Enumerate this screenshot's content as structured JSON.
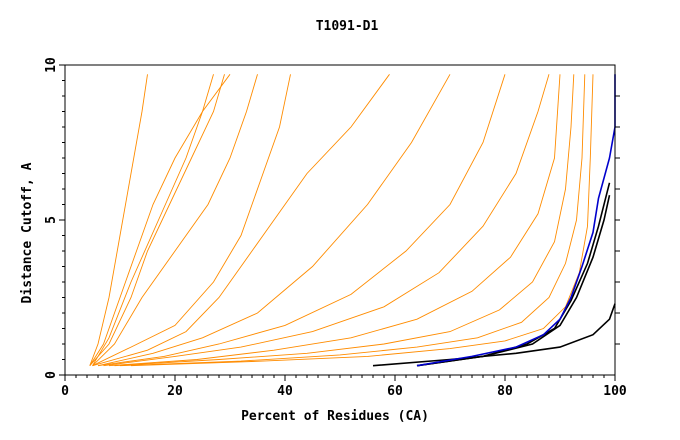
{
  "chart_data": {
    "type": "line",
    "title": "T1091-D1",
    "xlabel": "Percent of Residues (CA)",
    "ylabel": "Distance Cutoff, A",
    "xlim": [
      0,
      100
    ],
    "ylim": [
      0,
      10
    ],
    "x_ticks": [
      0,
      20,
      40,
      60,
      80,
      100
    ],
    "x_tick_labels": [
      "0",
      "20",
      "40",
      "60",
      "80",
      "100"
    ],
    "y_ticks": [
      0,
      5,
      10
    ],
    "y_tick_labels": [
      "0",
      "5",
      "10"
    ],
    "grid": false,
    "colors": {
      "orange": "#ff8c00",
      "black": "#000000",
      "blue": "#0000cc"
    },
    "series": [
      {
        "color": "orange",
        "points": [
          [
            4.5,
            0.3
          ],
          [
            6,
            1.0
          ],
          [
            8,
            2.5
          ],
          [
            10,
            4.5
          ],
          [
            12,
            6.5
          ],
          [
            14,
            8.5
          ],
          [
            15,
            9.7
          ]
        ]
      },
      {
        "color": "orange",
        "points": [
          [
            4.5,
            0.3
          ],
          [
            7,
            1.0
          ],
          [
            10,
            2.5
          ],
          [
            13,
            4.0
          ],
          [
            16,
            5.5
          ],
          [
            20,
            7.0
          ],
          [
            25,
            8.5
          ],
          [
            30,
            9.7
          ]
        ]
      },
      {
        "color": "orange",
        "points": [
          [
            4.5,
            0.3
          ],
          [
            8,
            1.0
          ],
          [
            12,
            2.5
          ],
          [
            15,
            4.0
          ],
          [
            19,
            5.5
          ],
          [
            23,
            7.0
          ],
          [
            27,
            8.5
          ],
          [
            29,
            9.7
          ]
        ]
      },
      {
        "color": "orange",
        "points": [
          [
            5,
            0.3
          ],
          [
            8,
            1.2
          ],
          [
            12,
            3.0
          ],
          [
            17,
            5.0
          ],
          [
            22,
            7.0
          ],
          [
            25,
            8.5
          ],
          [
            27,
            9.7
          ]
        ]
      },
      {
        "color": "orange",
        "points": [
          [
            5,
            0.3
          ],
          [
            9,
            1.0
          ],
          [
            14,
            2.5
          ],
          [
            20,
            4.0
          ],
          [
            26,
            5.5
          ],
          [
            30,
            7.0
          ],
          [
            33,
            8.5
          ],
          [
            35,
            9.7
          ]
        ]
      },
      {
        "color": "orange",
        "points": [
          [
            5,
            0.3
          ],
          [
            12,
            0.9
          ],
          [
            20,
            1.6
          ],
          [
            27,
            3.0
          ],
          [
            32,
            4.5
          ],
          [
            36,
            6.5
          ],
          [
            39,
            8.0
          ],
          [
            41,
            9.7
          ]
        ]
      },
      {
        "color": "orange",
        "points": [
          [
            5,
            0.3
          ],
          [
            15,
            0.8
          ],
          [
            22,
            1.4
          ],
          [
            28,
            2.5
          ],
          [
            36,
            4.5
          ],
          [
            44,
            6.5
          ],
          [
            52,
            8.0
          ],
          [
            59,
            9.7
          ]
        ]
      },
      {
        "color": "orange",
        "points": [
          [
            6,
            0.3
          ],
          [
            16,
            0.7
          ],
          [
            25,
            1.2
          ],
          [
            35,
            2.0
          ],
          [
            45,
            3.5
          ],
          [
            55,
            5.5
          ],
          [
            63,
            7.5
          ],
          [
            70,
            9.7
          ]
        ]
      },
      {
        "color": "orange",
        "points": [
          [
            6,
            0.3
          ],
          [
            18,
            0.6
          ],
          [
            28,
            1.0
          ],
          [
            40,
            1.6
          ],
          [
            52,
            2.6
          ],
          [
            62,
            4.0
          ],
          [
            70,
            5.5
          ],
          [
            76,
            7.5
          ],
          [
            80,
            9.7
          ]
        ]
      },
      {
        "color": "orange",
        "points": [
          [
            7,
            0.3
          ],
          [
            20,
            0.6
          ],
          [
            32,
            0.9
          ],
          [
            45,
            1.4
          ],
          [
            58,
            2.2
          ],
          [
            68,
            3.3
          ],
          [
            76,
            4.8
          ],
          [
            82,
            6.5
          ],
          [
            86,
            8.5
          ],
          [
            88,
            9.7
          ]
        ]
      },
      {
        "color": "orange",
        "points": [
          [
            8,
            0.3
          ],
          [
            24,
            0.5
          ],
          [
            38,
            0.8
          ],
          [
            52,
            1.2
          ],
          [
            64,
            1.8
          ],
          [
            74,
            2.7
          ],
          [
            81,
            3.8
          ],
          [
            86,
            5.2
          ],
          [
            89,
            7.0
          ],
          [
            90,
            9.7
          ]
        ]
      },
      {
        "color": "orange",
        "points": [
          [
            9,
            0.3
          ],
          [
            28,
            0.5
          ],
          [
            44,
            0.7
          ],
          [
            58,
            1.0
          ],
          [
            70,
            1.4
          ],
          [
            79,
            2.1
          ],
          [
            85,
            3.0
          ],
          [
            89,
            4.3
          ],
          [
            91,
            6.0
          ],
          [
            92,
            8.0
          ],
          [
            92.5,
            9.7
          ]
        ]
      },
      {
        "color": "orange",
        "points": [
          [
            10,
            0.3
          ],
          [
            32,
            0.45
          ],
          [
            50,
            0.65
          ],
          [
            64,
            0.9
          ],
          [
            75,
            1.2
          ],
          [
            83,
            1.7
          ],
          [
            88,
            2.5
          ],
          [
            91,
            3.6
          ],
          [
            93,
            5.0
          ],
          [
            94,
            7.0
          ],
          [
            94.5,
            9.7
          ]
        ]
      },
      {
        "color": "orange",
        "points": [
          [
            12,
            0.3
          ],
          [
            36,
            0.45
          ],
          [
            55,
            0.6
          ],
          [
            70,
            0.85
          ],
          [
            80,
            1.1
          ],
          [
            87,
            1.5
          ],
          [
            91,
            2.2
          ],
          [
            93.5,
            3.3
          ],
          [
            95,
            4.8
          ],
          [
            95.5,
            7.0
          ],
          [
            96,
            9.7
          ]
        ]
      },
      {
        "color": "black",
        "points": [
          [
            56,
            0.3
          ],
          [
            70,
            0.5
          ],
          [
            82,
            0.7
          ],
          [
            90,
            0.9
          ],
          [
            96,
            1.3
          ],
          [
            99,
            1.8
          ],
          [
            100,
            2.3
          ]
        ]
      },
      {
        "color": "black",
        "points": [
          [
            64,
            0.3
          ],
          [
            76,
            0.6
          ],
          [
            85,
            1.0
          ],
          [
            90,
            1.6
          ],
          [
            93,
            2.5
          ],
          [
            96,
            3.8
          ],
          [
            98,
            5.0
          ],
          [
            99,
            5.8
          ]
        ]
      },
      {
        "color": "black",
        "points": [
          [
            64,
            0.3
          ],
          [
            76,
            0.6
          ],
          [
            84,
            1.0
          ],
          [
            89,
            1.5
          ],
          [
            92,
            2.4
          ],
          [
            95,
            3.6
          ],
          [
            97,
            4.8
          ],
          [
            99,
            6.2
          ]
        ]
      },
      {
        "color": "blue",
        "points": [
          [
            64,
            0.3
          ],
          [
            74,
            0.6
          ],
          [
            82,
            0.9
          ],
          [
            87,
            1.3
          ],
          [
            90,
            1.8
          ],
          [
            92,
            2.5
          ],
          [
            94,
            3.5
          ],
          [
            96,
            4.6
          ],
          [
            97,
            5.7
          ],
          [
            99,
            7.0
          ],
          [
            100,
            8.0
          ],
          [
            100,
            9.7
          ]
        ]
      }
    ]
  }
}
